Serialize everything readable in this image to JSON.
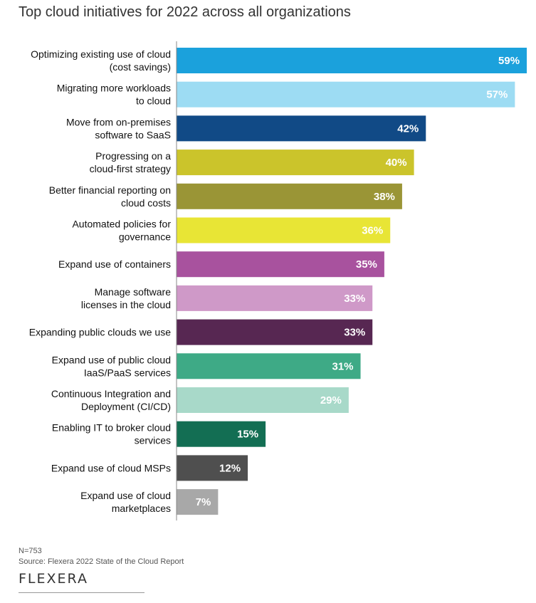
{
  "chart_data": {
    "type": "bar",
    "orientation": "horizontal",
    "title": "Top cloud initiatives for 2022 across all organizations",
    "categories": [
      [
        "Optimizing existing use of cloud",
        "(cost savings)"
      ],
      [
        "Migrating more workloads",
        "to cloud"
      ],
      [
        "Move from on-premises",
        "software to SaaS"
      ],
      [
        "Progressing on a",
        "cloud-first strategy"
      ],
      [
        "Better financial reporting on",
        "cloud costs"
      ],
      [
        "Automated policies for",
        "governance"
      ],
      [
        "Expand use of containers"
      ],
      [
        "Manage software",
        "licenses in the cloud"
      ],
      [
        "Expanding public clouds we use"
      ],
      [
        "Expand use of public cloud",
        "IaaS/PaaS services"
      ],
      [
        "Continuous Integration and",
        "Deployment (CI/CD)"
      ],
      [
        "Enabling IT to broker cloud",
        "services"
      ],
      [
        "Expand use of cloud MSPs"
      ],
      [
        "Expand use of cloud",
        "marketplaces"
      ]
    ],
    "values": [
      59,
      57,
      42,
      40,
      38,
      36,
      35,
      33,
      33,
      31,
      29,
      15,
      12,
      7
    ],
    "value_labels": [
      "59%",
      "57%",
      "42%",
      "40%",
      "38%",
      "36%",
      "35%",
      "33%",
      "33%",
      "31%",
      "29%",
      "15%",
      "12%",
      "7%"
    ],
    "colors": [
      "#1ba1dc",
      "#9ddcf3",
      "#114a86",
      "#cbc42b",
      "#9a9536",
      "#e8e535",
      "#a8529e",
      "#cf99c8",
      "#572752",
      "#3eaa86",
      "#a8d9c9",
      "#136e53",
      "#4f4f4f",
      "#a8a8a8"
    ],
    "xlim": [
      0,
      60
    ],
    "grid": false,
    "legend": "none"
  },
  "footnote": {
    "n": "N=753",
    "source": "Source: Flexera 2022 State of the Cloud Report"
  },
  "logo": "FLEXERA"
}
